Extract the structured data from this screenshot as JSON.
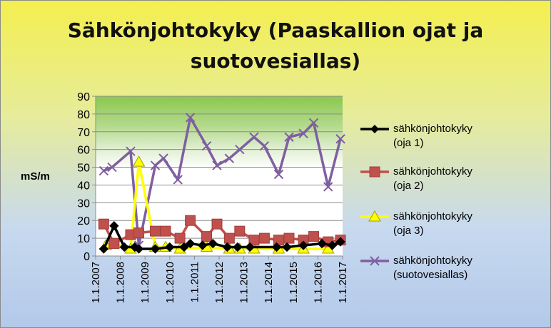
{
  "chart_data": {
    "type": "line",
    "title": "Sähkönjohtokyky (Paaskallion ojat ja\nsuotovesiallas)",
    "ylabel": "mS/m",
    "xlabel": "",
    "ylim": [
      0,
      90
    ],
    "yticks": [
      0,
      10,
      20,
      30,
      40,
      50,
      60,
      70,
      80,
      90
    ],
    "xlim": [
      "2007-01-01",
      "2017-01-01"
    ],
    "xticks": [
      "1.1.2007",
      "1.1.2008",
      "1.1.2009",
      "1.1.2010",
      "1.1.2011",
      "1.1.2012",
      "1.1.2013",
      "1.1.2014",
      "1.1.2015",
      "1.1.2016",
      "1.1.2017"
    ],
    "plot_background": "green gradient top (60-90), white below",
    "grid": "horizontal",
    "legend_position": "right",
    "series": [
      {
        "name": "sähkönjohtokyky (oja 1)",
        "color": "#000000",
        "marker": "diamond",
        "points": [
          [
            "2007-05-01",
            4
          ],
          [
            "2007-10-01",
            17
          ],
          [
            "2008-03-01",
            5
          ],
          [
            "2008-08-01",
            5
          ],
          [
            "2008-10-01",
            4
          ],
          [
            "2009-06-01",
            4
          ],
          [
            "2010-01-01",
            5
          ],
          [
            "2010-08-01",
            5
          ],
          [
            "2010-11-01",
            7
          ],
          [
            "2011-05-01",
            6
          ],
          [
            "2011-10-01",
            7
          ],
          [
            "2012-05-01",
            5
          ],
          [
            "2012-10-01",
            5
          ],
          [
            "2013-04-01",
            5
          ],
          [
            "2014-05-01",
            5
          ],
          [
            "2014-10-01",
            5
          ],
          [
            "2015-06-01",
            6
          ],
          [
            "2016-03-01",
            7
          ],
          [
            "2016-08-01",
            6
          ],
          [
            "2016-12-01",
            8
          ]
        ]
      },
      {
        "name": "sähkönjohtokyky (oja 2)",
        "color": "#c0504d",
        "marker": "square",
        "points": [
          [
            "2007-05-01",
            18
          ],
          [
            "2007-10-01",
            7
          ],
          [
            "2008-06-01",
            12
          ],
          [
            "2008-10-01",
            13
          ],
          [
            "2009-06-01",
            14
          ],
          [
            "2009-11-01",
            14
          ],
          [
            "2010-06-01",
            10
          ],
          [
            "2010-11-01",
            20
          ],
          [
            "2011-07-01",
            11
          ],
          [
            "2011-12-01",
            18
          ],
          [
            "2012-06-01",
            10
          ],
          [
            "2012-11-01",
            14
          ],
          [
            "2013-06-01",
            9
          ],
          [
            "2013-11-01",
            10
          ],
          [
            "2014-06-01",
            9
          ],
          [
            "2014-11-01",
            10
          ],
          [
            "2015-06-01",
            9
          ],
          [
            "2015-11-01",
            11
          ],
          [
            "2016-06-01",
            8
          ],
          [
            "2016-12-01",
            9
          ]
        ]
      },
      {
        "name": "sähkönjohtokyky (oja 3)",
        "color": "#ffff00",
        "marker": "triangle",
        "points": [
          [
            "2007-06-01",
            6
          ],
          [
            "2007-10-01",
            7
          ],
          [
            "2008-06-01",
            4
          ],
          [
            "2008-10-01",
            53
          ],
          [
            "2009-06-01",
            5
          ],
          [
            "2009-11-01",
            5
          ],
          [
            "2010-06-01",
            4
          ],
          [
            "2011-07-01",
            5
          ],
          [
            "2012-06-01",
            4
          ],
          [
            "2012-11-01",
            4
          ],
          [
            "2013-06-01",
            4
          ],
          [
            "2014-06-01",
            4
          ],
          [
            "2015-06-01",
            4
          ],
          [
            "2016-06-01",
            4
          ]
        ]
      },
      {
        "name": "sähkönjohtokyky\n(suotovesiallas)",
        "color": "#7f5fa0",
        "marker": "x",
        "points": [
          [
            "2007-05-01",
            48
          ],
          [
            "2007-09-01",
            50
          ],
          [
            "2008-06-01",
            59
          ],
          [
            "2008-10-01",
            6
          ],
          [
            "2009-06-01",
            51
          ],
          [
            "2009-10-01",
            55
          ],
          [
            "2010-05-01",
            43
          ],
          [
            "2010-11-01",
            78
          ],
          [
            "2011-07-01",
            62
          ],
          [
            "2011-12-01",
            51
          ],
          [
            "2012-06-01",
            55
          ],
          [
            "2012-11-01",
            60
          ],
          [
            "2013-06-01",
            67
          ],
          [
            "2013-11-01",
            62
          ],
          [
            "2014-06-01",
            46
          ],
          [
            "2014-11-01",
            67
          ],
          [
            "2015-06-01",
            69
          ],
          [
            "2015-11-01",
            75
          ],
          [
            "2016-06-01",
            39
          ],
          [
            "2016-12-01",
            66
          ]
        ]
      }
    ]
  }
}
